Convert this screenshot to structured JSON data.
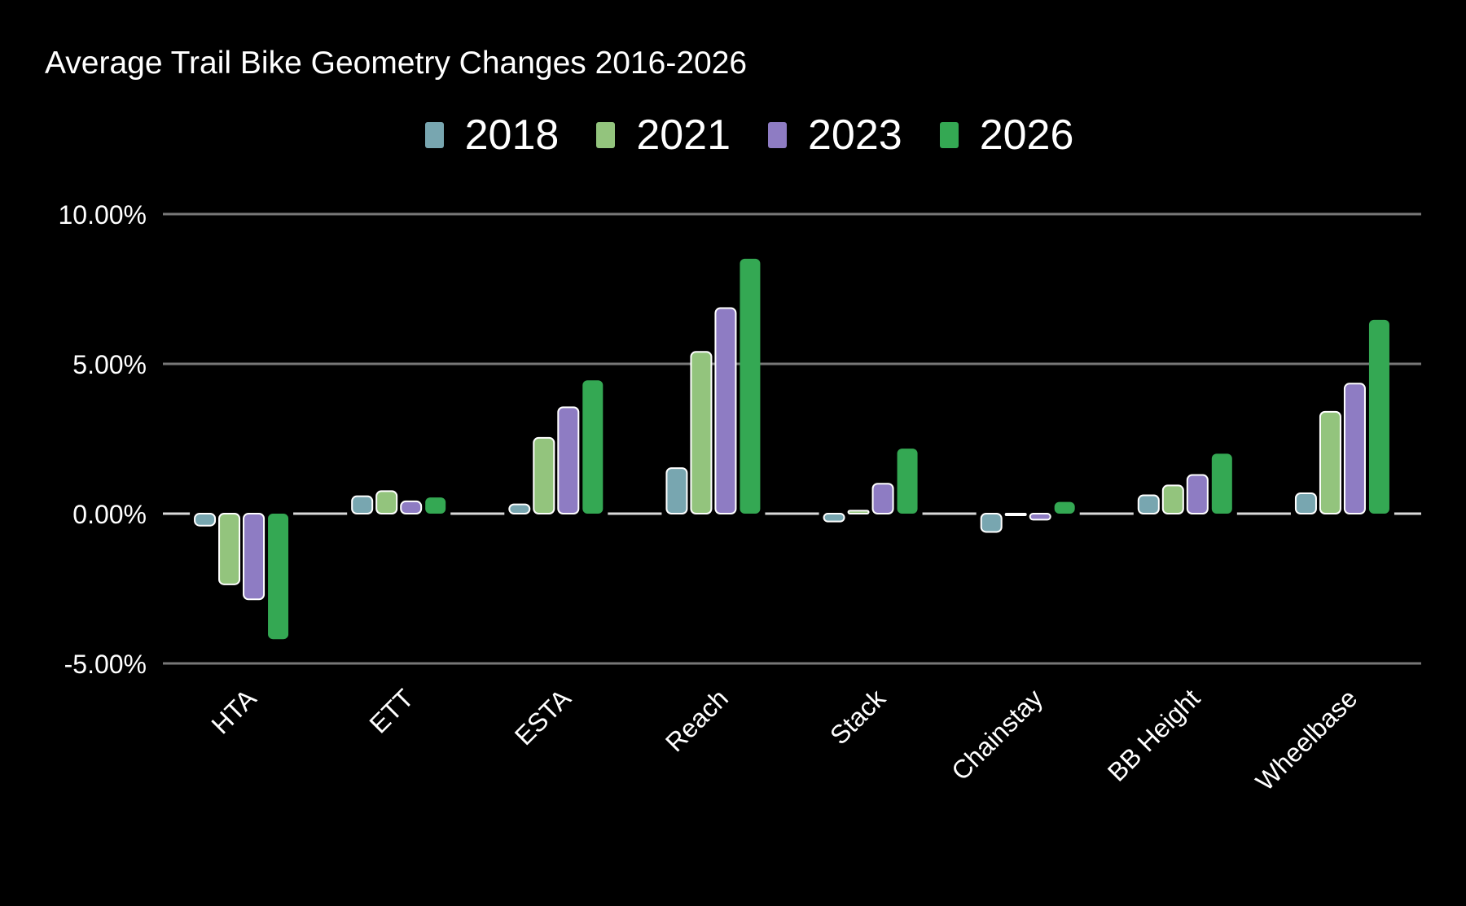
{
  "chart_data": {
    "type": "bar",
    "title": "Average Trail Bike Geometry Changes 2016-2026",
    "xlabel": "",
    "ylabel": "",
    "ylim": [
      -5,
      10
    ],
    "yticks": [
      -5,
      0,
      5,
      10
    ],
    "ytick_labels": [
      "-5.00%",
      "0.00%",
      "5.00%",
      "10.00%"
    ],
    "grid": true,
    "legend_position": "top-center",
    "categories": [
      "HTA",
      "ETT",
      "ESTA",
      "Reach",
      "Stack",
      "Chainstay",
      "BB Height",
      "Wheelbase"
    ],
    "series": [
      {
        "name": "2018",
        "color": "#78a6b0",
        "values": [
          -0.4,
          0.58,
          0.31,
          1.52,
          -0.26,
          -0.61,
          0.61,
          0.68
        ]
      },
      {
        "name": "2021",
        "color": "#93c47d",
        "values": [
          -2.36,
          0.75,
          2.53,
          5.4,
          0.1,
          -0.05,
          0.94,
          3.4
        ]
      },
      {
        "name": "2023",
        "color": "#8e7cc3",
        "values": [
          -2.86,
          0.41,
          3.55,
          6.86,
          1.0,
          -0.2,
          1.29,
          4.34
        ]
      },
      {
        "name": "2026",
        "color": "#34a853",
        "values": [
          -4.19,
          0.54,
          4.45,
          8.51,
          2.17,
          0.39,
          2.0,
          6.47
        ]
      }
    ]
  }
}
